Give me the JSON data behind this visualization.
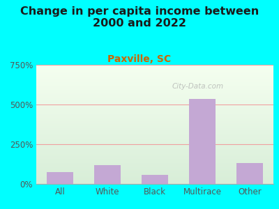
{
  "title": "Change in per capita income between\n2000 and 2022",
  "subtitle": "Paxville, SC",
  "categories": [
    "All",
    "White",
    "Black",
    "Multirace",
    "Other"
  ],
  "values": [
    75,
    120,
    55,
    535,
    130
  ],
  "bar_color": "#c4a8d4",
  "title_fontsize": 11.5,
  "subtitle_fontsize": 10,
  "subtitle_color": "#cc6600",
  "tick_label_color": "#555555",
  "axis_label_color": "#555555",
  "background_outer": "#00ffff",
  "background_inner": "#e8f5e0",
  "ylim": [
    0,
    750
  ],
  "yticks": [
    0,
    250,
    500,
    750
  ],
  "ytick_labels": [
    "0%",
    "250%",
    "500%",
    "750%"
  ],
  "watermark": "City-Data.com",
  "grid_color": "#f0a0a0",
  "title_color": "#1a1a1a"
}
